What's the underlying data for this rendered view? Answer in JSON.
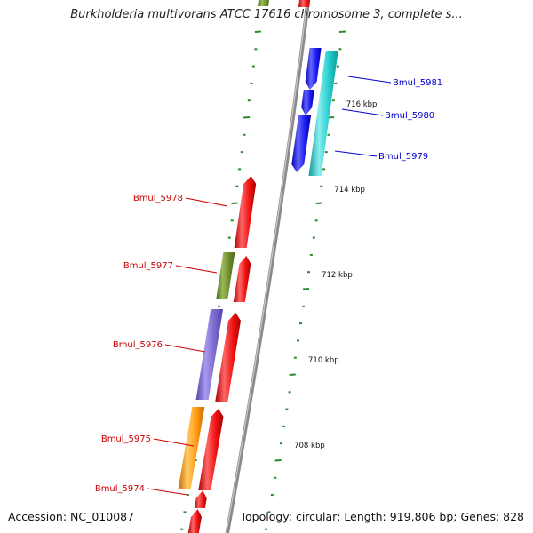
{
  "title": "Burkholderia multivorans ATCC 17616 chromosome 3, complete s...",
  "footer": {
    "accession": "Accession: NC_010087",
    "summary": "Topology: circular; Length: 919,806 bp; Genes: 828"
  },
  "colors": {
    "backbone": "#8a8a8a",
    "tick": "#2a8a2a",
    "red": "#ee1111",
    "blue": "#1a1aee",
    "cyan": "#22cccc",
    "olive": "#6a8a2a",
    "purple": "#7a66cc",
    "orange": "#ff9911",
    "label_red": "#cc0000",
    "label_blue": "#0000cc"
  },
  "scale_labels": [
    "716 kbp",
    "714 kbp",
    "712 kbp",
    "710 kbp",
    "708 kbp"
  ],
  "genes": [
    {
      "label": "Bmul_5981",
      "strand": "reverse",
      "color": "blue"
    },
    {
      "label": "Bmul_5980",
      "strand": "reverse",
      "color": "blue"
    },
    {
      "label": "Bmul_5979",
      "strand": "reverse",
      "color": "cyan"
    },
    {
      "label": "Bmul_5978",
      "strand": "forward",
      "color": "red"
    },
    {
      "label": "Bmul_5977",
      "strand": "forward",
      "color": "red"
    },
    {
      "label": "Bmul_5976",
      "strand": "forward",
      "color": "red"
    },
    {
      "label": "Bmul_5975",
      "strand": "forward",
      "color": "red"
    },
    {
      "label": "Bmul_5974",
      "strand": "forward",
      "color": "red"
    }
  ],
  "feature_colors_other": [
    "olive",
    "purple",
    "orange",
    "cyan",
    "blue"
  ]
}
